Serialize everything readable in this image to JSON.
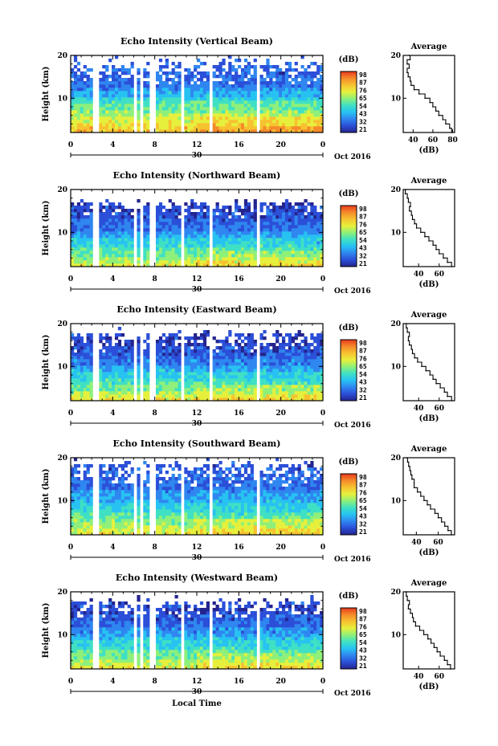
{
  "chart_data": [
    {
      "type": "heatmap",
      "title": "Echo Intensity (Vertical Beam)",
      "ylabel": "Height (km)",
      "ylim": [
        2,
        20
      ],
      "yticks": [
        "20",
        "10"
      ],
      "xlim": [
        0,
        24
      ],
      "xticks": [
        "0",
        "4",
        "8",
        "12",
        "16",
        "20",
        "0"
      ],
      "date_label": "30",
      "month_label": "Oct 2016",
      "colorbar": {
        "unit": "(dB)",
        "ticks": [
          "98",
          "87",
          "76",
          "65",
          "54",
          "43",
          "32",
          "21"
        ],
        "range": [
          21,
          98
        ]
      },
      "profile": {
        "title": "Average",
        "xlabel": "(dB)",
        "xticks": [
          "40",
          "60",
          "80"
        ],
        "xlim": [
          30,
          82
        ],
        "yticks": [
          "20",
          "10"
        ],
        "height_km": [
          2,
          3,
          4,
          5,
          6,
          7,
          8,
          9,
          10,
          11,
          12,
          13,
          14,
          15,
          16,
          17,
          18,
          19,
          20
        ],
        "values_db": [
          79,
          77,
          73,
          70,
          66,
          63,
          60,
          57,
          52,
          46,
          41,
          38,
          37,
          35,
          34,
          36,
          34,
          37,
          36
        ]
      },
      "gaps_hours": [
        [
          2.0,
          2.6
        ],
        [
          5.9,
          6.2
        ],
        [
          6.7,
          7.0
        ],
        [
          7.6,
          8.0
        ],
        [
          10.5,
          10.9
        ],
        [
          13.2,
          13.6
        ],
        [
          17.7,
          18.1
        ]
      ],
      "echo_top_km": 20
    },
    {
      "type": "heatmap",
      "title": "Echo Intensity (Northward Beam)",
      "ylabel": "Height (km)",
      "ylim": [
        2,
        20
      ],
      "yticks": [
        "20",
        "10"
      ],
      "xlim": [
        0,
        24
      ],
      "xticks": [
        "0",
        "4",
        "8",
        "12",
        "16",
        "20",
        "0"
      ],
      "date_label": "30",
      "month_label": "Oct 2016",
      "colorbar": {
        "unit": "(dB)",
        "ticks": [
          "98",
          "87",
          "76",
          "65",
          "54",
          "43",
          "32",
          "21"
        ],
        "range": [
          21,
          98
        ]
      },
      "profile": {
        "title": "Average",
        "xlabel": "(dB)",
        "xticks": [
          "40",
          "60"
        ],
        "xlim": [
          25,
          75
        ],
        "yticks": [
          "20",
          "10"
        ],
        "height_km": [
          2,
          3,
          4,
          5,
          6,
          7,
          8,
          9,
          10,
          11,
          12,
          13,
          14,
          15,
          16,
          17,
          18,
          19,
          20
        ],
        "values_db": [
          72,
          68,
          64,
          60,
          57,
          54,
          50,
          46,
          42,
          38,
          36,
          34,
          33,
          31,
          32,
          30,
          29,
          27,
          28
        ]
      },
      "gaps_hours": [
        [
          2.0,
          2.6
        ],
        [
          5.9,
          6.2
        ],
        [
          6.7,
          7.0
        ],
        [
          7.6,
          8.0
        ],
        [
          10.5,
          10.9
        ],
        [
          13.2,
          13.6
        ],
        [
          17.7,
          18.1
        ]
      ],
      "echo_top_km": 18
    },
    {
      "type": "heatmap",
      "title": "Echo Intensity (Eastward Beam)",
      "ylabel": "Height (km)",
      "ylim": [
        2,
        20
      ],
      "yticks": [
        "20",
        "10"
      ],
      "xlim": [
        0,
        24
      ],
      "xticks": [
        "0",
        "4",
        "8",
        "12",
        "16",
        "20",
        "0"
      ],
      "date_label": "30",
      "month_label": "Oct 2016",
      "colorbar": {
        "unit": "(dB)",
        "ticks": [
          "98",
          "87",
          "76",
          "65",
          "54",
          "43",
          "32",
          "21"
        ],
        "range": [
          21,
          98
        ]
      },
      "profile": {
        "title": "Average",
        "xlabel": "(dB)",
        "xticks": [
          "40",
          "60"
        ],
        "xlim": [
          25,
          75
        ],
        "yticks": [
          "20",
          "10"
        ],
        "height_km": [
          2,
          3,
          4,
          5,
          6,
          7,
          8,
          9,
          10,
          11,
          12,
          13,
          14,
          15,
          16,
          17,
          18,
          19,
          20
        ],
        "values_db": [
          72,
          68,
          65,
          61,
          57,
          54,
          51,
          47,
          43,
          39,
          36,
          34,
          33,
          31,
          30,
          31,
          29,
          28,
          28
        ]
      },
      "gaps_hours": [
        [
          2.0,
          2.6
        ],
        [
          5.9,
          6.2
        ],
        [
          6.7,
          7.0
        ],
        [
          7.6,
          8.0
        ],
        [
          10.5,
          10.9
        ],
        [
          13.2,
          13.6
        ],
        [
          17.7,
          18.1
        ]
      ],
      "echo_top_km": 19
    },
    {
      "type": "heatmap",
      "title": "Echo Intensity (Southward Beam)",
      "ylabel": "Height (km)",
      "ylim": [
        2,
        20
      ],
      "yticks": [
        "20",
        "10"
      ],
      "xlim": [
        0,
        24
      ],
      "xticks": [
        "0",
        "4",
        "8",
        "12",
        "16",
        "20",
        "0"
      ],
      "date_label": "30",
      "month_label": "Oct 2016",
      "colorbar": {
        "unit": "(dB)",
        "ticks": [
          "98",
          "87",
          "76",
          "65",
          "54",
          "43",
          "32",
          "21"
        ],
        "range": [
          21,
          98
        ]
      },
      "profile": {
        "title": "Average",
        "xlabel": "(dB)",
        "xticks": [
          "40",
          "60"
        ],
        "xlim": [
          28,
          75
        ],
        "yticks": [
          "20",
          "10"
        ],
        "height_km": [
          2,
          3,
          4,
          5,
          6,
          7,
          8,
          9,
          10,
          11,
          12,
          13,
          14,
          15,
          16,
          17,
          18,
          19,
          20
        ],
        "values_db": [
          72,
          69,
          66,
          63,
          60,
          57,
          53,
          50,
          47,
          44,
          41,
          38,
          38,
          36,
          35,
          34,
          33,
          32,
          31
        ]
      },
      "gaps_hours": [
        [
          2.0,
          2.6
        ],
        [
          5.9,
          6.2
        ],
        [
          6.7,
          7.0
        ],
        [
          7.6,
          8.0
        ],
        [
          10.5,
          10.9
        ],
        [
          13.2,
          13.6
        ],
        [
          17.7,
          18.1
        ]
      ],
      "echo_top_km": 20
    },
    {
      "type": "heatmap",
      "title": "Echo Intensity (Westward Beam)",
      "ylabel": "Height (km)",
      "ylim": [
        2,
        20
      ],
      "yticks": [
        "20",
        "10"
      ],
      "xlim": [
        0,
        24
      ],
      "xticks": [
        "0",
        "4",
        "8",
        "12",
        "16",
        "20",
        "0"
      ],
      "date_label": "30",
      "month_label": "Oct 2016",
      "colorbar": {
        "unit": "(dB)",
        "ticks": [
          "98",
          "87",
          "76",
          "65",
          "54",
          "43",
          "32",
          "21"
        ],
        "range": [
          21,
          98
        ]
      },
      "profile": {
        "title": "Average",
        "xlabel": "(dB)",
        "xticks": [
          "40",
          "60"
        ],
        "xlim": [
          25,
          75
        ],
        "yticks": [
          "20",
          "10"
        ],
        "height_km": [
          2,
          3,
          4,
          5,
          6,
          7,
          8,
          9,
          10,
          11,
          12,
          13,
          14,
          15,
          16,
          17,
          18,
          19,
          20
        ],
        "values_db": [
          71,
          68,
          65,
          61,
          58,
          55,
          52,
          49,
          45,
          41,
          37,
          35,
          34,
          32,
          30,
          31,
          29,
          28,
          28
        ]
      },
      "gaps_hours": [
        [
          2.0,
          2.6
        ],
        [
          5.9,
          6.2
        ],
        [
          6.7,
          7.0
        ],
        [
          7.6,
          8.0
        ],
        [
          10.5,
          10.9
        ],
        [
          13.2,
          13.6
        ],
        [
          17.7,
          18.1
        ]
      ],
      "echo_top_km": 19
    }
  ],
  "footer": {
    "xlabel": "Local Time"
  },
  "colormap": [
    "#24248e",
    "#2b4fd8",
    "#2f86f0",
    "#27c2f2",
    "#3fe0c4",
    "#8ef07a",
    "#e6f03c",
    "#f7c230",
    "#f58a2a",
    "#e8391d"
  ]
}
